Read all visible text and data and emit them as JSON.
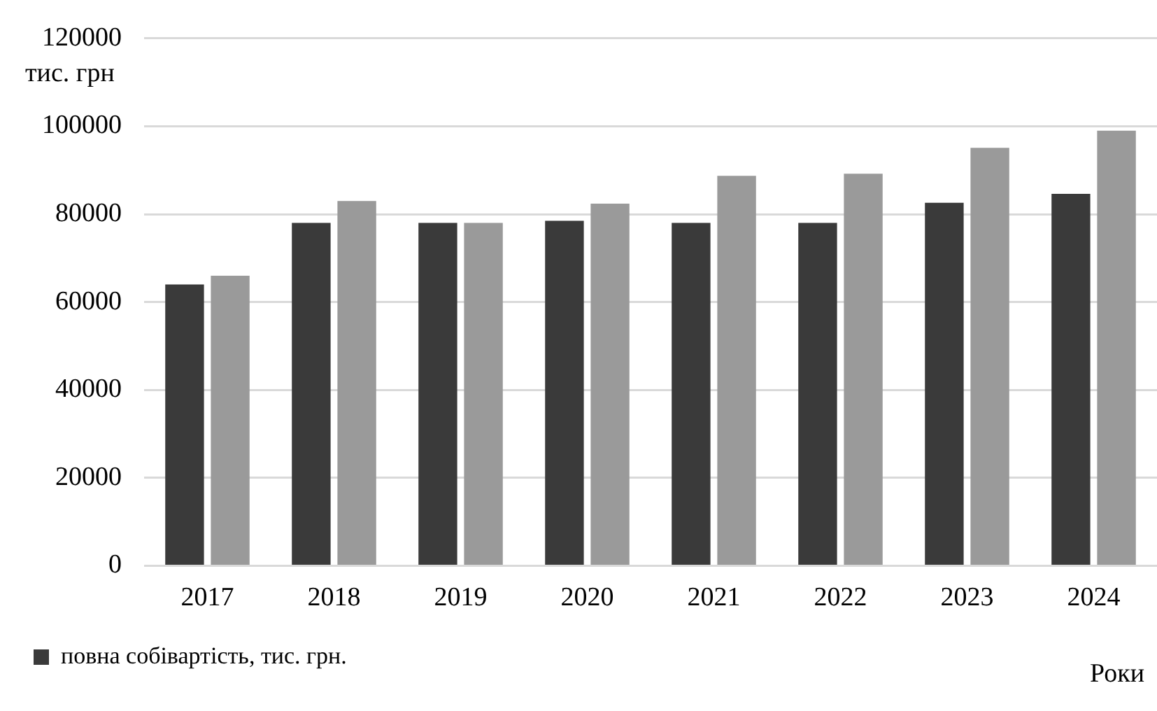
{
  "chart_data": {
    "type": "bar",
    "ylabel": "тис. грн",
    "xlabel": "Роки",
    "categories": [
      "2017",
      "2018",
      "2019",
      "2020",
      "2021",
      "2022",
      "2023",
      "2024"
    ],
    "series": [
      {
        "name": "повна собівартість, тис. грн.",
        "color": "#3a3a3a",
        "values": [
          64000,
          78000,
          78000,
          78500,
          78000,
          78000,
          82600,
          84600
        ]
      },
      {
        "color": "#9a9a9a",
        "values": [
          66000,
          83000,
          78000,
          82400,
          88700,
          89200,
          95100,
          99000
        ]
      }
    ],
    "ylim": [
      0,
      120000
    ],
    "yticks": [
      0,
      20000,
      40000,
      60000,
      80000,
      100000,
      120000
    ],
    "grid": "y",
    "legend": "bottom left"
  }
}
